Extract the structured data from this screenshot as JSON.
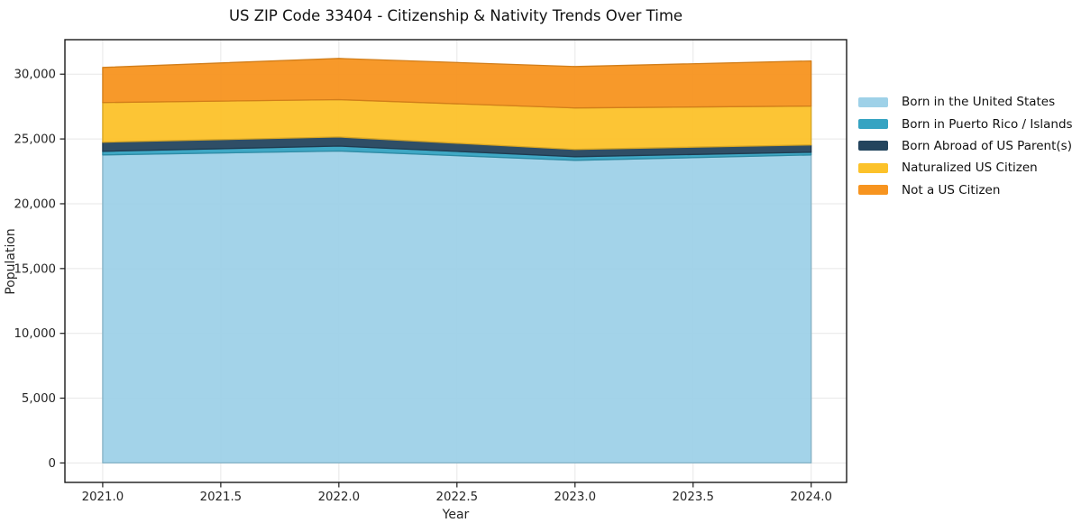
{
  "chart_data": {
    "type": "area",
    "stacked": true,
    "title": "US ZIP Code 33404 - Citizenship & Nativity Trends Over Time",
    "xlabel": "Year",
    "ylabel": "Population",
    "x": [
      2021,
      2022,
      2023,
      2024
    ],
    "series": [
      {
        "name": "Born in the United States",
        "color": "#9ed1e8",
        "values": [
          23770,
          24070,
          23350,
          23770
        ]
      },
      {
        "name": "Born in Puerto Rico / Islands",
        "color": "#35a3c2",
        "values": [
          280,
          380,
          280,
          210
        ]
      },
      {
        "name": "Born Abroad of US Parent(s)",
        "color": "#24455e",
        "values": [
          700,
          700,
          560,
          560
        ]
      },
      {
        "name": "Naturalized US Citizen",
        "color": "#fcc22a",
        "values": [
          3060,
          2880,
          3200,
          3000
        ]
      },
      {
        "name": "Not a US Citizen",
        "color": "#f7941f",
        "values": [
          2710,
          3180,
          3200,
          3480
        ]
      }
    ],
    "totals": [
      30520,
      31210,
      30590,
      31020
    ],
    "xlim": [
      2020.84,
      2024.15
    ],
    "ylim": [
      -1500,
      32660
    ],
    "x_ticks": [
      2021.0,
      2021.5,
      2022.0,
      2022.5,
      2023.0,
      2023.5,
      2024.0
    ],
    "x_tick_labels": [
      "2021.0",
      "2021.5",
      "2022.0",
      "2022.5",
      "2023.0",
      "2023.5",
      "2024.0"
    ],
    "y_ticks": [
      0,
      5000,
      10000,
      15000,
      20000,
      25000,
      30000
    ],
    "y_tick_labels": [
      "0",
      "5,000",
      "10,000",
      "15,000",
      "20,000",
      "25,000",
      "30,000"
    ],
    "grid": true,
    "legend_position": "right of plot, frameless",
    "colors": {
      "background": "#ffffff",
      "grid": "#e7e7e7",
      "spine": "#1a1a1a",
      "text": "#262626"
    }
  }
}
